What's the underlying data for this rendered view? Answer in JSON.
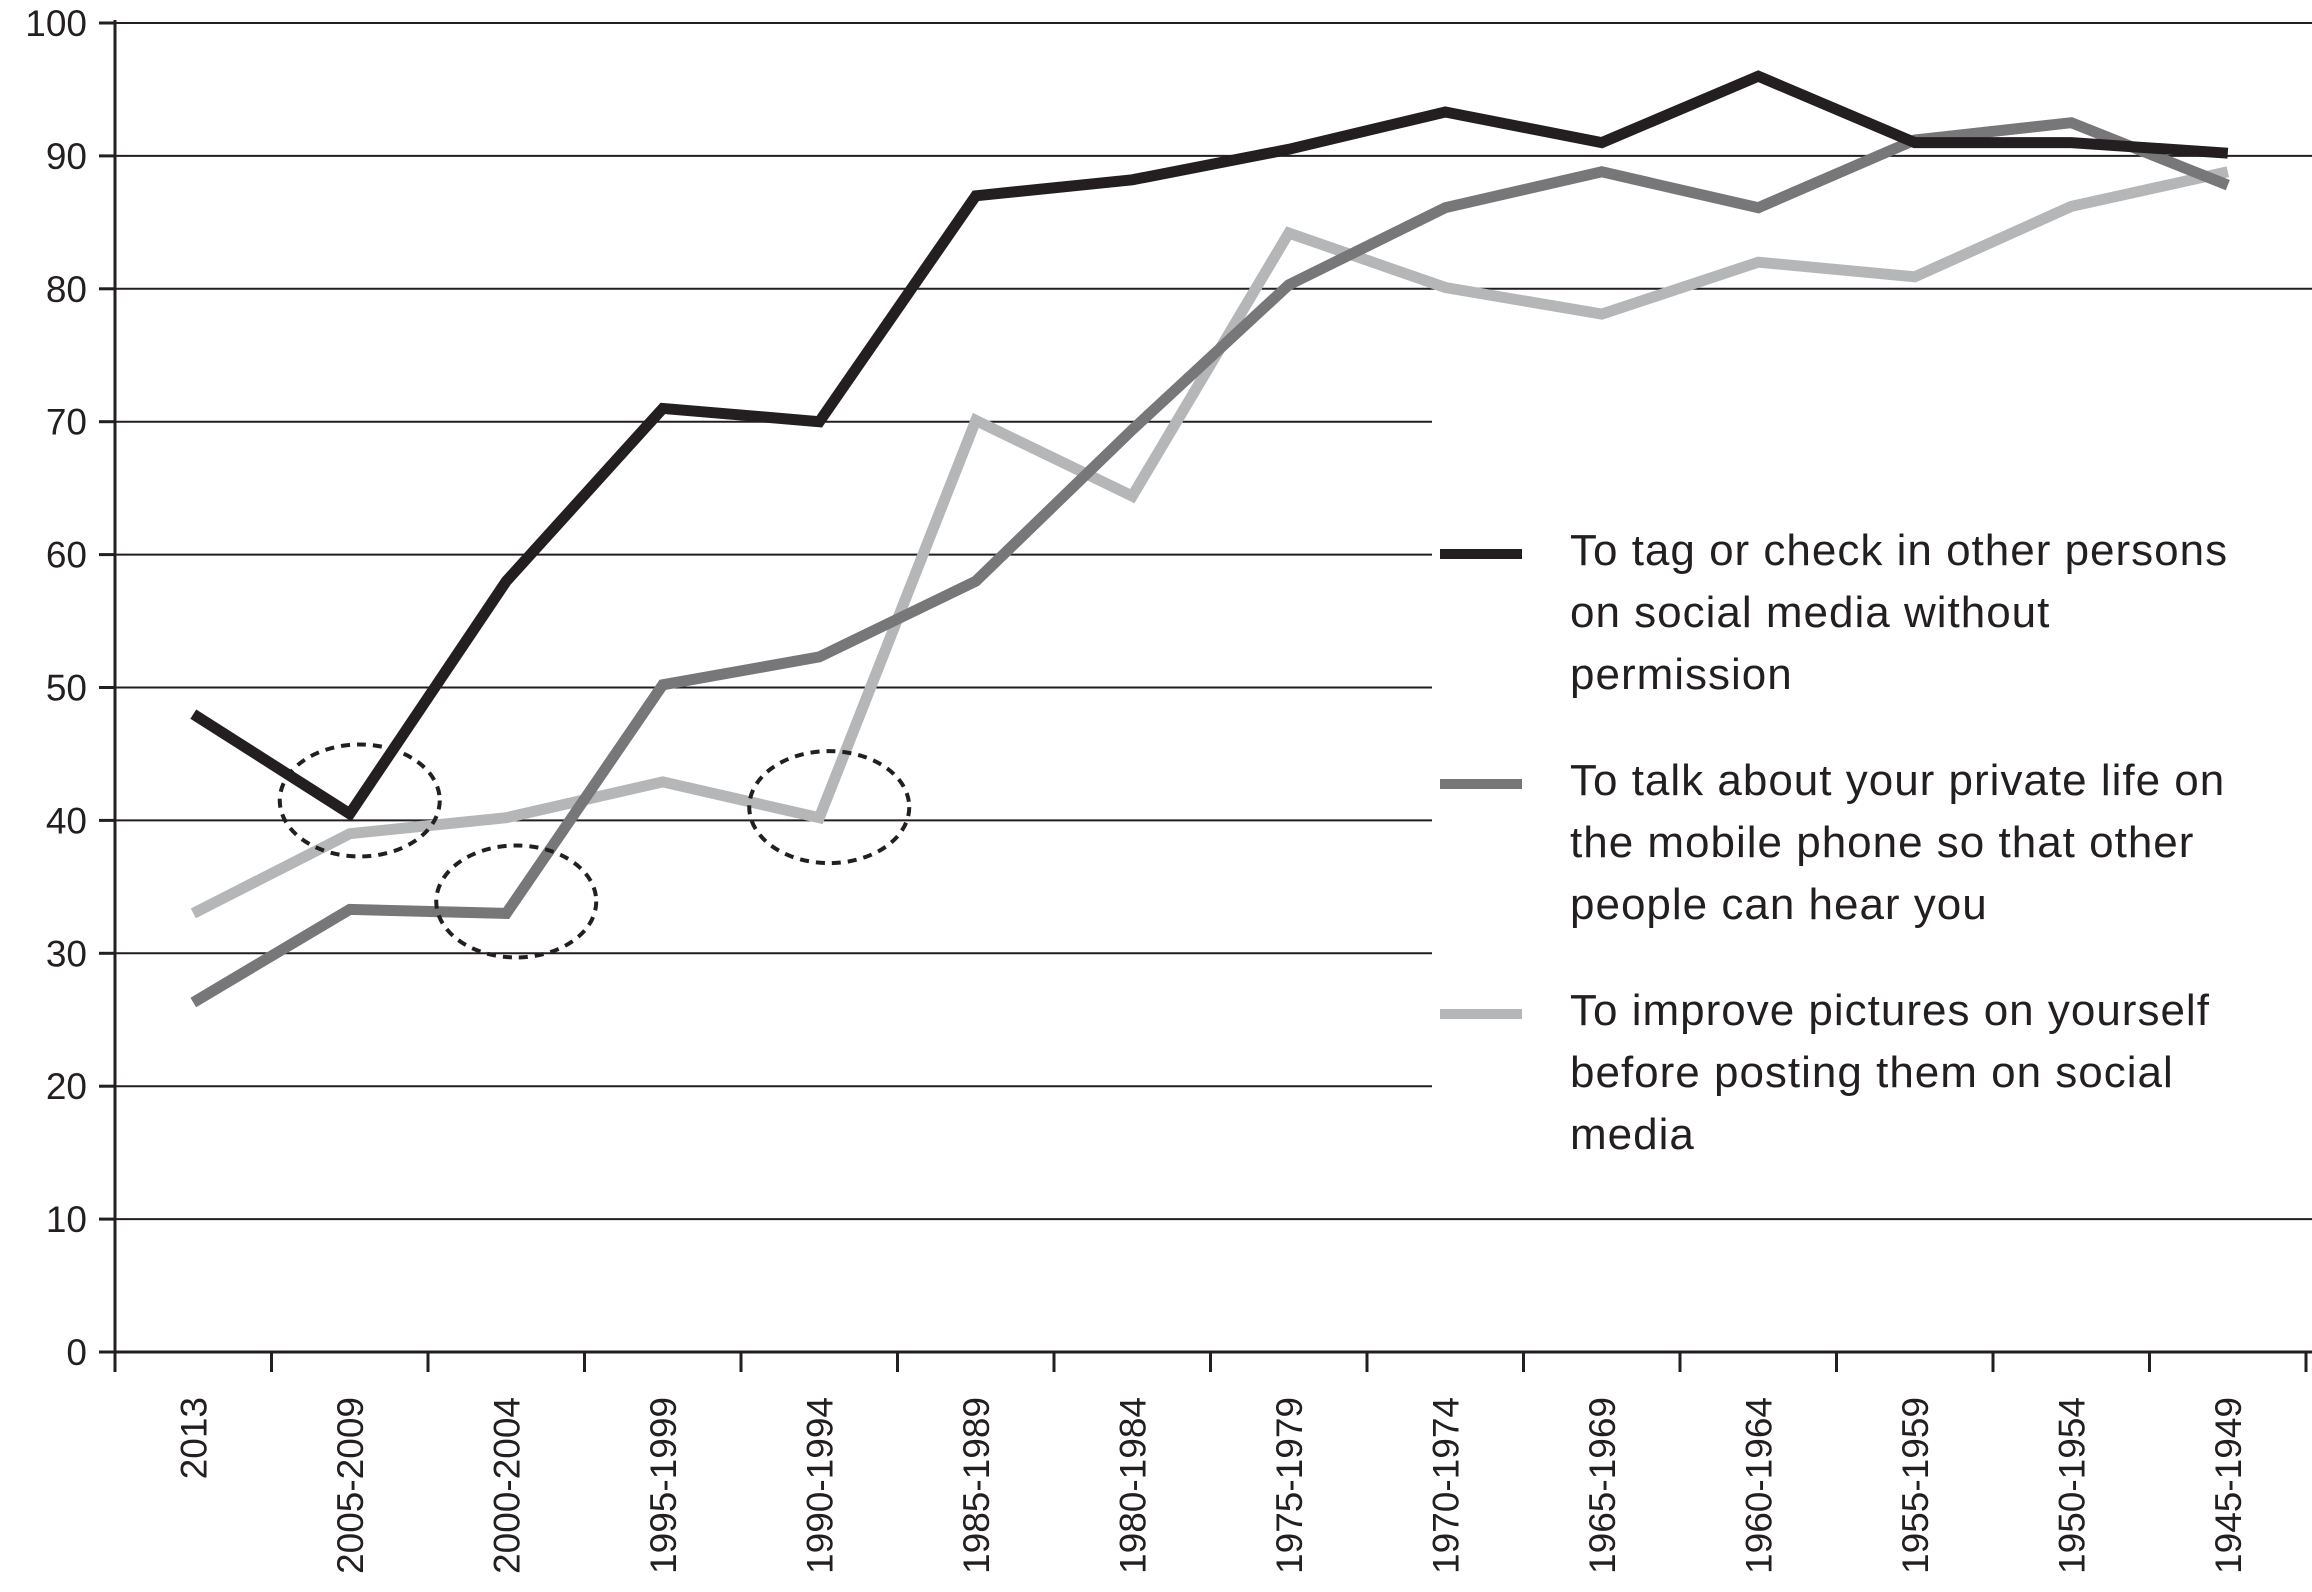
{
  "chart_data": {
    "type": "line",
    "title": "",
    "xlabel": "",
    "ylabel": "",
    "ylim": [
      0,
      100
    ],
    "yticks": [
      0,
      10,
      20,
      30,
      40,
      50,
      60,
      70,
      80,
      90,
      100
    ],
    "categories": [
      "2013",
      "2005-2009",
      "2000-2004",
      "1995-1999",
      "1990-1994",
      "1985-1989",
      "1980-1984",
      "1975-1979",
      "1970-1974",
      "1965-1969",
      "1960-1964",
      "1955-1959",
      "1950-1954",
      "1945-1949"
    ],
    "grid": "horizontal",
    "legend_position": "right",
    "series": [
      {
        "name": "To tag or check in other persons on social media without permission",
        "color": "#231f20",
        "values": [
          48,
          40.5,
          58,
          71,
          70,
          87,
          88.2,
          90.5,
          93.3,
          91,
          96,
          91,
          91,
          90.2
        ]
      },
      {
        "name": "To talk about your private life on the mobile phone so that other people can hear you",
        "color": "#77777a",
        "values": [
          26.3,
          33.3,
          33,
          50.2,
          52.3,
          58,
          69.4,
          80.3,
          86.1,
          88.8,
          86.1,
          91.2,
          92.5,
          87.8
        ]
      },
      {
        "name": "To improve pictures on yourself before posting them on social media",
        "color": "#b5b6b8",
        "values": [
          33,
          39,
          40.2,
          42.9,
          40.2,
          70.1,
          64.4,
          84.2,
          80.1,
          78.1,
          82,
          80.9,
          86.2,
          88.8
        ]
      }
    ],
    "annotations": [
      {
        "shape": "dashed-ellipse",
        "category": "2005-2009",
        "value": 41.5
      },
      {
        "shape": "dashed-ellipse",
        "category": "2000-2004",
        "value": 33.9
      },
      {
        "shape": "dashed-ellipse",
        "category": "1990-1994",
        "value": 41
      }
    ]
  }
}
